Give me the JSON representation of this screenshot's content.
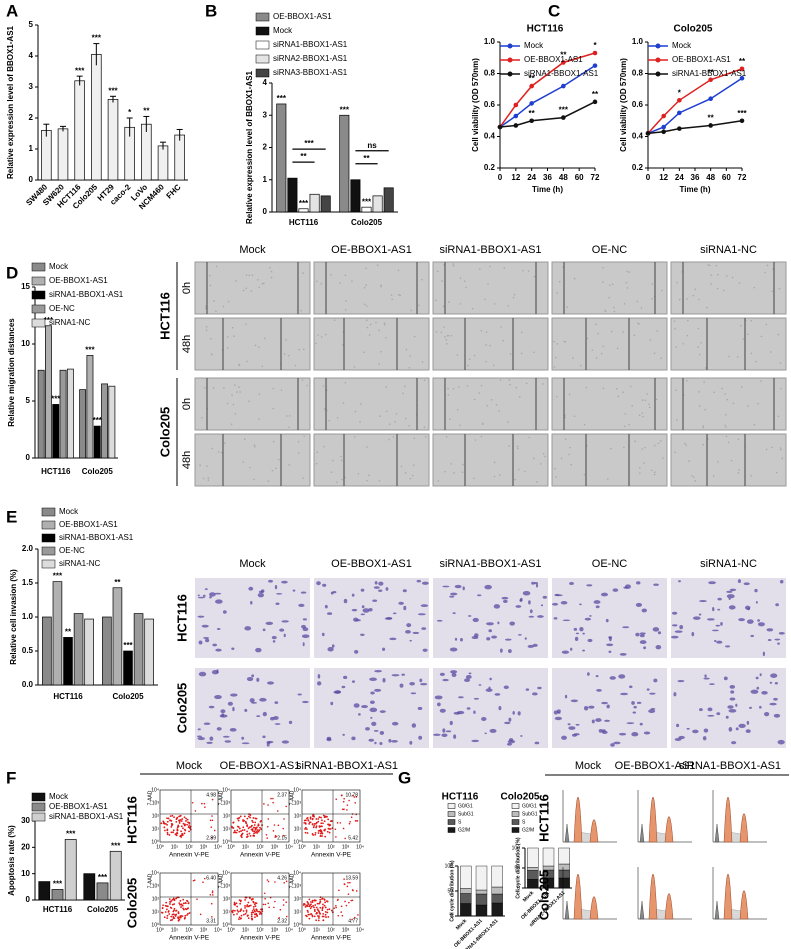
{
  "chart_data": [
    {
      "panel": "A",
      "type": "bar",
      "y_label": "Relative expression level of BBOX1-AS1",
      "categories": [
        "SW480",
        "SW620",
        "HCT116",
        "Colo205",
        "HT29",
        "caco-2",
        "LoVo",
        "NCM460",
        "FHC"
      ],
      "values": [
        1.6,
        1.65,
        3.2,
        4.05,
        2.6,
        1.7,
        1.8,
        1.1,
        1.45
      ],
      "errors": [
        0.2,
        0.08,
        0.15,
        0.35,
        0.1,
        0.3,
        0.25,
        0.12,
        0.18
      ],
      "significance": [
        null,
        null,
        "***",
        "***",
        "***",
        "*",
        "**",
        null,
        null
      ],
      "color": "#f0f0f0",
      "ylim": [
        0,
        5
      ],
      "yticks": [
        0,
        1,
        2,
        3,
        4,
        5
      ]
    },
    {
      "panel": "B",
      "type": "bar",
      "y_label": "Relative expression level of BBOX1-AS1",
      "categories": [
        "HCT116",
        "Colo205"
      ],
      "series": [
        {
          "name": "OE-BBOX1-AS1",
          "color": "#8a8a8a",
          "values": [
            3.35,
            3.0
          ],
          "significance": [
            "***",
            "***"
          ]
        },
        {
          "name": "Mock",
          "color": "#111111",
          "values": [
            1.05,
            1.0
          ]
        },
        {
          "name": "siRNA1-BBOX1-AS1",
          "color": "#ffffff",
          "values": [
            0.1,
            0.15
          ],
          "significance": [
            "***",
            "***"
          ]
        },
        {
          "name": "siRNA2-BBOX1-AS1",
          "color": "#e4e4e4",
          "values": [
            0.55,
            0.5
          ]
        },
        {
          "name": "siRNA3-BBOX1-AS1",
          "color": "#444444",
          "values": [
            0.5,
            0.75
          ]
        }
      ],
      "brackets": [
        {
          "category": "HCT116",
          "from": "Mock",
          "to": "siRNA2-BBOX1-AS1",
          "text": "**"
        },
        {
          "category": "HCT116",
          "from": "Mock",
          "to": "siRNA3-BBOX1-AS1",
          "text": "***"
        },
        {
          "category": "Colo205",
          "from": "Mock",
          "to": "siRNA2-BBOX1-AS1",
          "text": "**"
        },
        {
          "category": "Colo205",
          "from": "Mock",
          "to": "siRNA3-BBOX1-AS1",
          "text": "ns"
        }
      ],
      "ylim": [
        0,
        4
      ],
      "yticks": [
        0,
        1,
        2,
        3,
        4
      ]
    },
    {
      "panel": "C",
      "type": "line",
      "title": "HCT116",
      "x_label": "Time (h)",
      "y_label": "Cell viability (OD 570nm)",
      "x": [
        0,
        12,
        24,
        48,
        72
      ],
      "series": [
        {
          "name": "Mock",
          "color": "#1f3fd0",
          "values": [
            0.46,
            0.53,
            0.61,
            0.72,
            0.85
          ]
        },
        {
          "name": "OE-BBOX1-AS1",
          "color": "#e02020",
          "values": [
            0.46,
            0.6,
            0.72,
            0.87,
            0.93
          ],
          "significance": [
            null,
            null,
            "**",
            "**",
            "*"
          ]
        },
        {
          "name": "siRNA1-BBOX1-AS1",
          "color": "#111111",
          "values": [
            0.46,
            0.47,
            0.5,
            0.52,
            0.62
          ],
          "significance": [
            null,
            null,
            "**",
            "***",
            "**"
          ]
        }
      ],
      "xlim": [
        0,
        72
      ],
      "xticks": [
        0,
        12,
        24,
        36,
        48,
        60,
        72
      ],
      "ylim": [
        0.2,
        1.0
      ],
      "yticks": [
        0.2,
        0.4,
        0.6,
        0.8,
        {
          "value": 1.0,
          "label": "1.0"
        }
      ]
    },
    {
      "panel": null,
      "type": "line",
      "title": "Colo205",
      "x_label": "Time (h)",
      "y_label": "Cell viability (OD 570nm)",
      "x": [
        0,
        12,
        24,
        48,
        72
      ],
      "series": [
        {
          "name": "Mock",
          "color": "#1f3fd0",
          "values": [
            0.42,
            0.46,
            0.55,
            0.64,
            0.77
          ]
        },
        {
          "name": "OE-BBOX1-AS1",
          "color": "#e02020",
          "values": [
            0.42,
            0.53,
            0.63,
            0.76,
            0.83
          ],
          "significance": [
            null,
            null,
            "*",
            "**",
            "**"
          ]
        },
        {
          "name": "siRNA1-BBOX1-AS1",
          "color": "#111111",
          "values": [
            0.42,
            0.43,
            0.45,
            0.47,
            0.5
          ],
          "significance": [
            null,
            null,
            null,
            "**",
            "***"
          ]
        }
      ],
      "xlim": [
        0,
        72
      ],
      "xticks": [
        0,
        12,
        24,
        36,
        48,
        60,
        72
      ],
      "ylim": [
        0.2,
        1.0
      ],
      "yticks": [
        0.2,
        0.4,
        0.6,
        0.8,
        {
          "value": 1.0,
          "label": "1.0"
        }
      ]
    },
    {
      "panel": "D",
      "type": "bar",
      "y_label": "Relative migration distances",
      "categories": [
        "HCT116",
        "Colo205"
      ],
      "series": [
        {
          "name": "Mock",
          "color": "#8a8a8a",
          "values": [
            7.7,
            6.0
          ]
        },
        {
          "name": "OE-BBOX1-AS1",
          "color": "#b0b0b0",
          "values": [
            11.6,
            9.0
          ],
          "significance": [
            "***",
            "***"
          ]
        },
        {
          "name": "siRNA1-BBOX1-AS1",
          "color": "#000000",
          "values": [
            4.7,
            2.8
          ],
          "significance": [
            "***",
            "***"
          ]
        },
        {
          "name": "OE-NC",
          "color": "#9a9a9a",
          "values": [
            7.7,
            6.5
          ]
        },
        {
          "name": "siRNA1-NC",
          "color": "#dcdcdc",
          "values": [
            7.8,
            6.3
          ]
        }
      ],
      "ylim": [
        0,
        15
      ],
      "yticks": [
        0,
        5,
        10,
        15
      ]
    },
    {
      "panel": "E",
      "type": "bar",
      "y_label": "Relative cell invasion (%)",
      "categories": [
        "HCT116",
        "Colo205"
      ],
      "series": [
        {
          "name": "Mock",
          "color": "#8a8a8a",
          "values": [
            1.0,
            1.0
          ]
        },
        {
          "name": "OE-BBOX1-AS1",
          "color": "#b0b0b0",
          "values": [
            1.52,
            1.43
          ],
          "significance": [
            "***",
            "**"
          ]
        },
        {
          "name": "siRNA1-BBOX1-AS1",
          "color": "#000000",
          "values": [
            0.7,
            0.5
          ],
          "significance": [
            "**",
            "***"
          ]
        },
        {
          "name": "OE-NC",
          "color": "#9a9a9a",
          "values": [
            1.05,
            1.05
          ]
        },
        {
          "name": "siRNA1-NC",
          "color": "#dcdcdc",
          "values": [
            0.97,
            0.97
          ]
        }
      ],
      "ylim": [
        0,
        2
      ],
      "yticks": [
        {
          "value": 0,
          "label": "0.0"
        },
        0.5,
        {
          "value": 1,
          "label": "1.0"
        },
        1.5,
        {
          "value": 2,
          "label": "2.0"
        }
      ]
    },
    {
      "panel": "F",
      "type": "bar",
      "y_label": "Apoptosis rate (%)",
      "categories": [
        "HCT116",
        "Colo205"
      ],
      "series": [
        {
          "name": "Mock",
          "color": "#111111",
          "values": [
            7,
            10
          ]
        },
        {
          "name": "OE-BBOX1-AS1",
          "color": "#8a8a8a",
          "values": [
            4,
            6.5
          ],
          "significance": [
            "***",
            "***"
          ]
        },
        {
          "name": "siRNA1-BBOX1-AS1",
          "color": "#cfcfcf",
          "values": [
            23,
            18.5
          ],
          "significance": [
            "***",
            "***"
          ]
        }
      ],
      "ylim": [
        0,
        30
      ],
      "yticks": [
        0,
        10,
        20,
        30
      ]
    },
    {
      "panel": "G",
      "type": "stacked_bar",
      "title": "HCT116",
      "y_label": "Cell cycle distribution (%)",
      "categories": [
        "Mock",
        "OE-BBOX1-AS1",
        "siRNA1-BBOX1-AS1"
      ],
      "series": [
        {
          "name": "G0/G1",
          "color": "#f2f2f2",
          "values": [
            45,
            48,
            42
          ]
        },
        {
          "name": "SubG1",
          "color": "#bdbdbd",
          "values": [
            10,
            8,
            14
          ]
        },
        {
          "name": "S",
          "color": "#5a5a5a",
          "values": [
            20,
            22,
            18
          ]
        },
        {
          "name": "G2/M",
          "color": "#1a1a1a",
          "values": [
            25,
            22,
            26
          ]
        }
      ],
      "ylim": [
        0,
        100
      ],
      "yticks": [
        0,
        50,
        100
      ]
    },
    {
      "panel": null,
      "type": "stacked_bar",
      "title": "Colo205",
      "y_label": "Cell cycle distribution (%)",
      "categories": [
        "Mock",
        "OE-BBOX1-AS1",
        "siRNA1-BBOX1-AS1"
      ],
      "series": [
        {
          "name": "G0/G1",
          "color": "#f2f2f2",
          "values": [
            48,
            45,
            40
          ]
        },
        {
          "name": "SubG1",
          "color": "#bdbdbd",
          "values": [
            8,
            10,
            15
          ]
        },
        {
          "name": "S",
          "color": "#5a5a5a",
          "values": [
            22,
            20,
            20
          ]
        },
        {
          "name": "G2/M",
          "color": "#1a1a1a",
          "values": [
            22,
            25,
            25
          ]
        }
      ],
      "ylim": [
        0,
        100
      ],
      "yticks": [
        0,
        50,
        100
      ]
    }
  ],
  "image_panels": [
    {
      "columns": [
        "Mock",
        "OE-BBOX1-AS1",
        "siRNA1-BBOX1-AS1",
        "OE-NC",
        "siRNA1-NC"
      ],
      "rows": [
        {
          "label": "HCT116",
          "times": [
            "0h",
            "48h"
          ]
        },
        {
          "label": "Colo205",
          "times": [
            "0h",
            "48h"
          ]
        }
      ]
    },
    {
      "columns": [
        "Mock",
        "OE-BBOX1-AS1",
        "siRNA1-BBOX1-AS1",
        "OE-NC",
        "siRNA1-NC"
      ],
      "rows": [
        "HCT116",
        "Colo205"
      ]
    },
    {
      "columns": [
        "Mock",
        "OE-BBOX1-AS1",
        "siRNA1-BBOX1-AS1"
      ],
      "rows": [
        "HCT116",
        "Colo205"
      ],
      "quadrants": [
        [
          [
            "4.98",
            "2.89"
          ],
          [
            "2.37",
            "2.15"
          ],
          [
            "10.78",
            "5.42"
          ]
        ],
        [
          [
            "6.40",
            "3.31"
          ],
          [
            "4.26",
            "2.32"
          ],
          [
            "13.59",
            "4.77"
          ]
        ]
      ],
      "x_axis_label": "Annexin V-PE",
      "y_axis_label": "7-AAD",
      "axis_ticks": [
        "10⁰",
        "10¹",
        "10²",
        "10³",
        "10⁴"
      ]
    },
    {
      "columns": [
        "Mock",
        "OE-BBOX1-AS1",
        "siRNA1-BBOX1-AS1"
      ],
      "rows": [
        "HCT116",
        "Colo205"
      ]
    }
  ]
}
